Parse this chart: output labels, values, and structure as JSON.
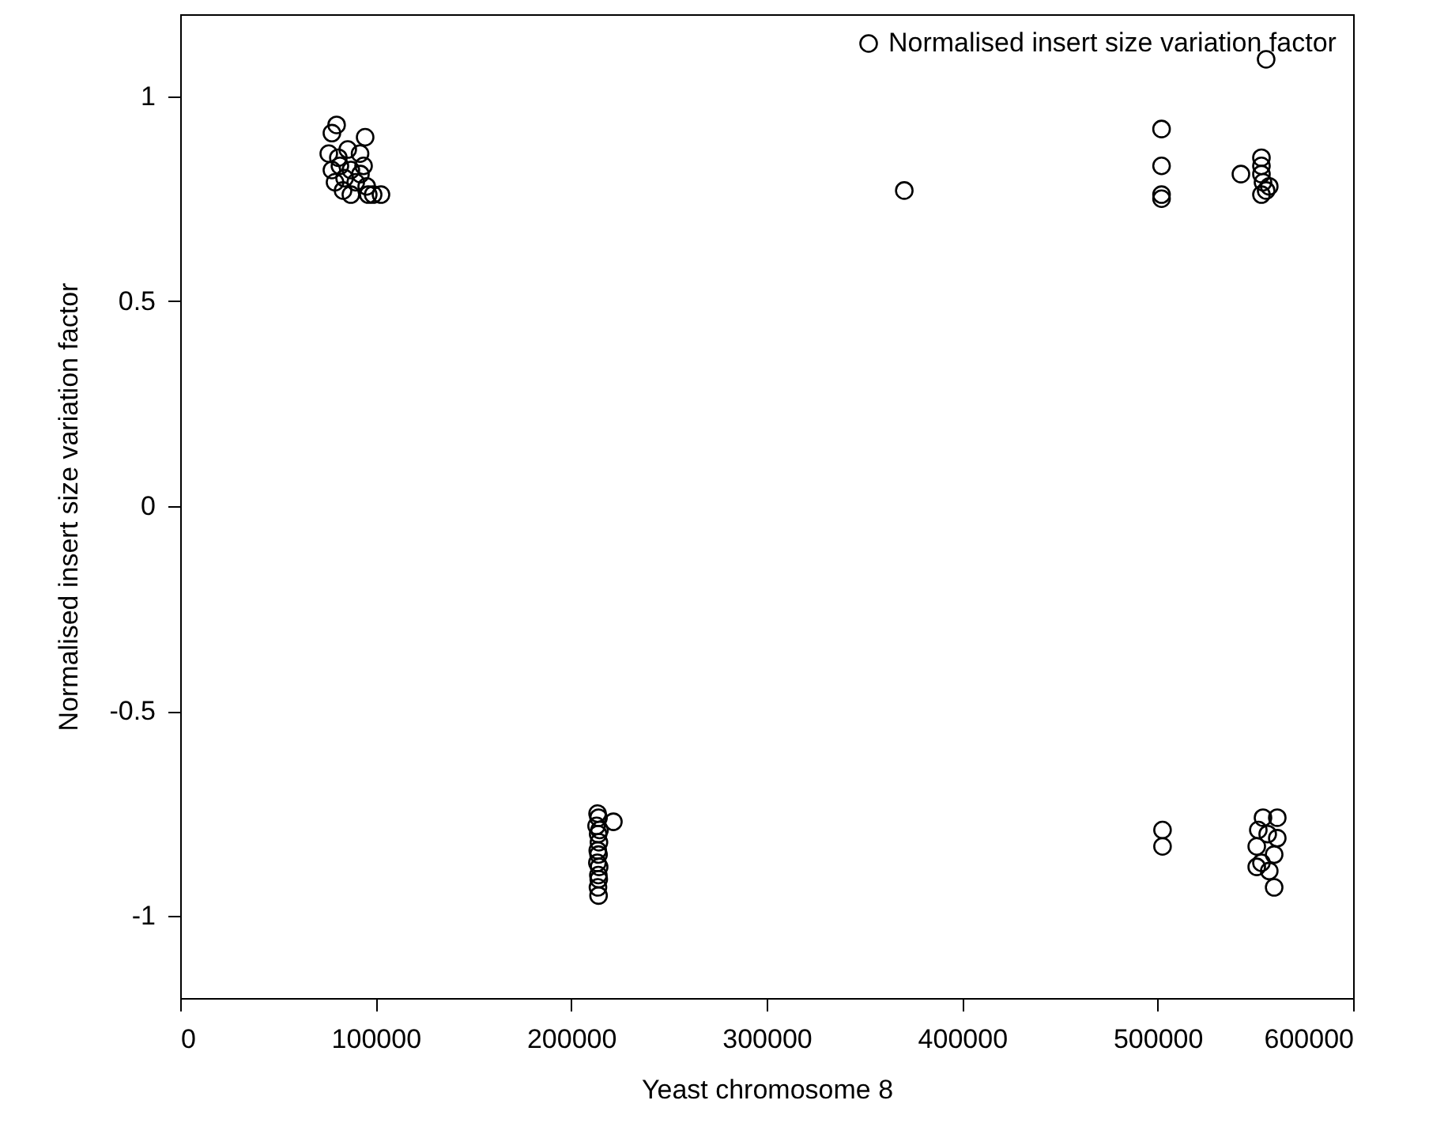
{
  "chart_data": {
    "type": "scatter",
    "xlabel": "Yeast chromosome 8",
    "ylabel": "Normalised insert size variation factor",
    "xlim": [
      0,
      600000
    ],
    "xticks": [
      0,
      100000,
      200000,
      300000,
      400000,
      500000,
      600000
    ],
    "ylim": [
      -1.2,
      1.2
    ],
    "yticks": [
      -1,
      -0.5,
      0,
      0.5,
      1
    ],
    "grid": false,
    "legend": "top right",
    "marker": "circle",
    "series": [
      {
        "name": "Normalised insert size variation factor",
        "color": "#000000",
        "x": [
          80000,
          77600,
          94600,
          76000,
          85700,
          92000,
          77600,
          81700,
          87300,
          93800,
          79200,
          84100,
          89800,
          95400,
          83300,
          87300,
          96200,
          102700,
          98700,
          92200,
          80900,
          213500,
          214000,
          213000,
          214500,
          213800,
          214200,
          213600,
          214000,
          213400,
          214300,
          213900,
          214100,
          213700,
          214000,
          221600,
          370400,
          502000,
          502000,
          502000,
          502000,
          542600,
          553100,
          553100,
          553100,
          553900,
          555500,
          557100,
          553100,
          555500,
          502500,
          502500,
          553900,
          561200,
          551500,
          550700,
          559600,
          553100,
          550700,
          557100,
          559600,
          561200,
          556300
        ],
        "values": [
          0.93,
          0.91,
          0.9,
          0.86,
          0.87,
          0.86,
          0.82,
          0.83,
          0.82,
          0.83,
          0.79,
          0.8,
          0.79,
          0.78,
          0.77,
          0.76,
          0.76,
          0.76,
          0.76,
          0.81,
          0.85,
          -0.75,
          -0.76,
          -0.78,
          -0.79,
          -0.8,
          -0.82,
          -0.84,
          -0.85,
          -0.87,
          -0.88,
          -0.9,
          -0.91,
          -0.93,
          -0.95,
          -0.77,
          0.77,
          0.92,
          0.83,
          0.76,
          0.75,
          0.81,
          0.85,
          0.83,
          0.81,
          0.79,
          0.77,
          0.78,
          0.76,
          1.09,
          -0.79,
          -0.83,
          -0.76,
          -0.76,
          -0.79,
          -0.83,
          -0.85,
          -0.87,
          -0.88,
          -0.89,
          -0.93,
          -0.81,
          -0.8
        ]
      }
    ]
  }
}
